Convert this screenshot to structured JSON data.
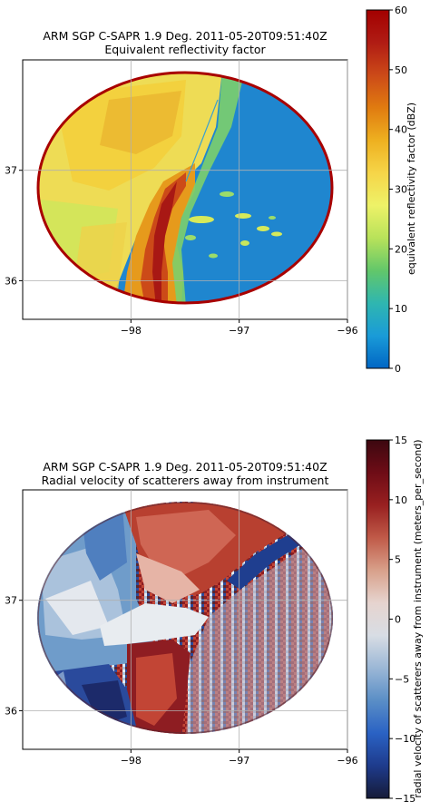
{
  "chart_data": [
    {
      "type": "heatmap",
      "title": "ARM SGP C-SAPR 1.9 Deg. 2011-05-20T09:51:40Z",
      "subtitle": "Equivalent reflectivity factor",
      "x_ticks": [
        -98,
        -97,
        -96
      ],
      "y_ticks": [
        37,
        36
      ],
      "xlim": [
        -99.0,
        -96.0
      ],
      "ylim": [
        35.65,
        38.0
      ],
      "grid": true,
      "colorbar": {
        "label": "equivalent reflectivity factor (dBZ)",
        "ticks": [
          0,
          10,
          20,
          30,
          40,
          50,
          60
        ],
        "range": [
          0,
          60
        ],
        "colors": [
          "#0066c4",
          "#1a9bd8",
          "#2fb6b0",
          "#62c76a",
          "#b8e25a",
          "#eef268",
          "#f6d548",
          "#eeb020",
          "#e07b10",
          "#cc4a18",
          "#b01c14",
          "#a30000"
        ]
      }
    },
    {
      "type": "heatmap",
      "title": "ARM SGP C-SAPR 1.9 Deg. 2011-05-20T09:51:40Z",
      "subtitle": "Radial velocity of scatterers away from instrument",
      "x_ticks": [
        -98,
        -97,
        -96
      ],
      "y_ticks": [
        37,
        36
      ],
      "xlim": [
        -99.0,
        -96.0
      ],
      "ylim": [
        35.65,
        38.0
      ],
      "grid": true,
      "colorbar": {
        "label": "radial velocity of scatterers away from instrument (meters_per_second)",
        "ticks": [
          15,
          10,
          5,
          0,
          -5,
          -10,
          -15
        ],
        "range": [
          -15,
          15
        ],
        "colors": [
          "#161b38",
          "#1e3b8c",
          "#2a62c4",
          "#5a8ec6",
          "#9bb7d6",
          "#d8dde4",
          "#e6d4cf",
          "#d8a08a",
          "#c05a48",
          "#982020",
          "#6e0c16",
          "#3c0810"
        ]
      }
    }
  ]
}
